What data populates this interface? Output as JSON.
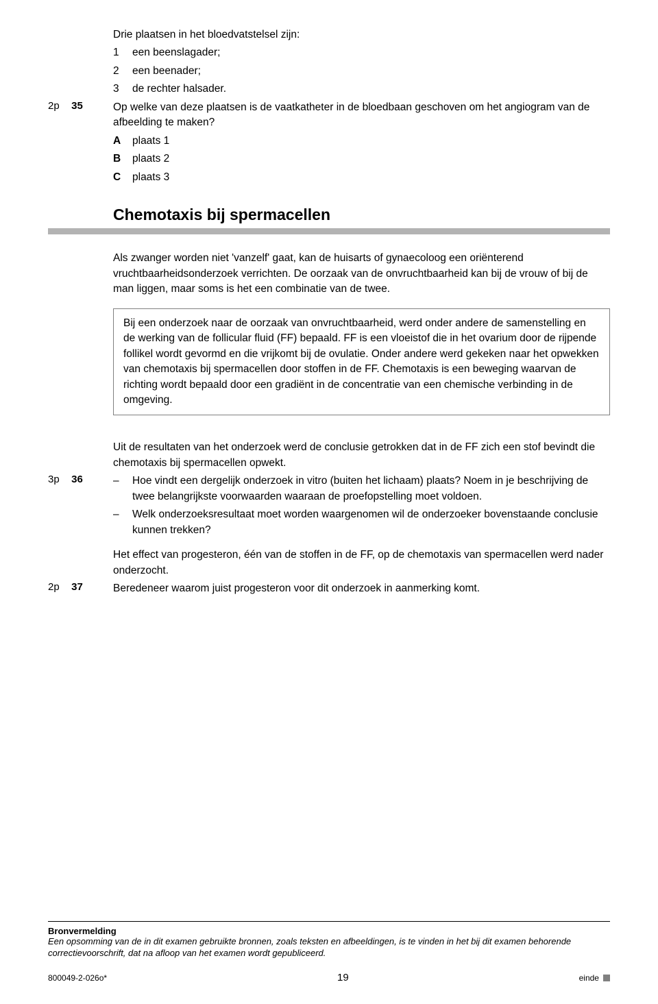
{
  "q35": {
    "intro": "Drie plaatsen in het bloedvatstelsel zijn:",
    "items": [
      {
        "n": "1",
        "t": "een beenslagader;"
      },
      {
        "n": "2",
        "t": "een beenader;"
      },
      {
        "n": "3",
        "t": "de rechter halsader."
      }
    ],
    "points": "2p",
    "num": "35",
    "question": "Op welke van deze plaatsen is de vaatkatheter in de bloedbaan geschoven om het angiogram van de afbeelding te maken?",
    "options": [
      {
        "l": "A",
        "t": "plaats 1"
      },
      {
        "l": "B",
        "t": "plaats 2"
      },
      {
        "l": "C",
        "t": "plaats 3"
      }
    ]
  },
  "section": {
    "title": "Chemotaxis bij spermacellen",
    "para1": "Als zwanger worden niet 'vanzelf' gaat, kan de huisarts of gynaecoloog een oriënterend vruchtbaarheidsonderzoek verrichten. De oorzaak van de onvruchtbaarheid kan bij de vrouw of bij de man liggen, maar soms is het een combinatie van de twee.",
    "box": "Bij een onderzoek naar de oorzaak van onvruchtbaarheid, werd onder andere de samenstelling en de werking van de follicular fluid (FF) bepaald. FF is een vloeistof die in het ovarium door de rijpende follikel wordt gevormd en die vrijkomt bij de ovulatie. Onder andere werd gekeken naar het opwekken van chemotaxis bij spermacellen door stoffen in de FF. Chemotaxis is een beweging waarvan de richting wordt bepaald door een gradiënt in de concentratie van een chemische verbinding in de omgeving."
  },
  "q36": {
    "intro": "Uit de resultaten van het onderzoek werd de conclusie getrokken dat in de FF zich een stof bevindt die chemotaxis bij spermacellen opwekt.",
    "points": "3p",
    "num": "36",
    "dashes": [
      "Hoe vindt een dergelijk onderzoek in vitro (buiten het lichaam) plaats? Noem in je beschrijving de twee belangrijkste voorwaarden waaraan de proefopstelling moet voldoen.",
      "Welk onderzoeksresultaat moet worden waargenomen wil de onderzoeker bovenstaande conclusie kunnen trekken?"
    ]
  },
  "q37": {
    "intro": "Het effect van progesteron, één van de stoffen in de FF, op de chemotaxis van spermacellen werd nader onderzocht.",
    "points": "2p",
    "num": "37",
    "question": "Beredeneer waarom juist progesteron voor dit onderzoek in aanmerking komt."
  },
  "footer": {
    "bron_title": "Bronvermelding",
    "bron_text": "Een opsomming van de in dit examen gebruikte bronnen, zoals teksten en afbeeldingen, is te vinden in het bij dit examen behorende correctievoorschrift, dat na afloop van het examen wordt gepubliceerd.",
    "code": "800049-2-026o*",
    "page": "19",
    "end": "einde"
  }
}
